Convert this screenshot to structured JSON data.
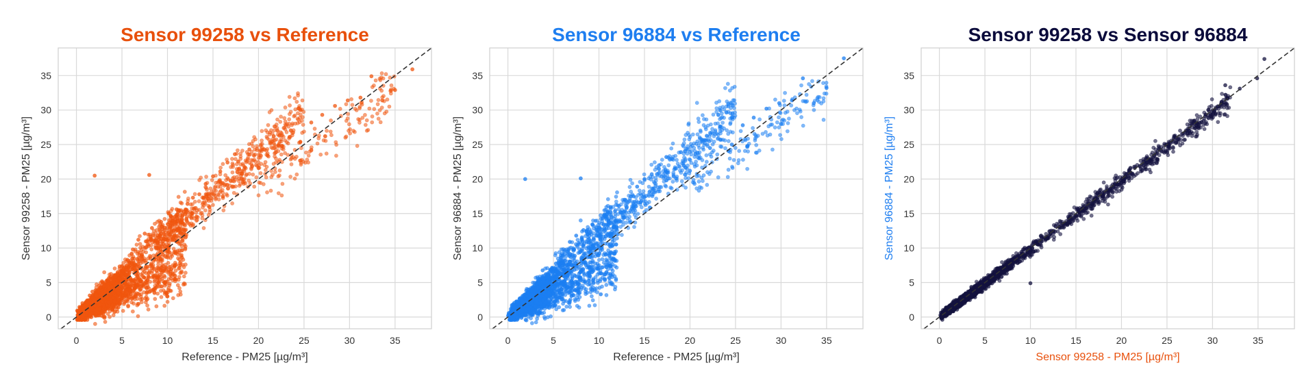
{
  "chart_data": [
    {
      "type": "scatter",
      "title": "Sensor 99258 vs Reference",
      "title_color": "#E8500C",
      "xlabel": "Reference - PM25 [µg/m³]",
      "ylabel": "Sensor 99258 - PM25 [µg/m³]",
      "xlabel_color": "#333333",
      "ylabel_color": "#333333",
      "point_color": "#F0560F",
      "xlim": [
        -2,
        39
      ],
      "ylim": [
        -1.7,
        39
      ],
      "xticks": [
        0,
        5,
        10,
        15,
        20,
        25,
        30,
        35
      ],
      "yticks": [
        0,
        5,
        10,
        15,
        20,
        25,
        30,
        35
      ],
      "grid": true,
      "reference_line": "y = x (dashed)",
      "sample_points": [
        [
          0.3,
          0.1
        ],
        [
          0.8,
          0.4
        ],
        [
          1.2,
          0.6
        ],
        [
          1.6,
          1.0
        ],
        [
          2.0,
          2.5
        ],
        [
          2.3,
          1.2
        ],
        [
          2.7,
          3.4
        ],
        [
          3.0,
          1.7
        ],
        [
          3.3,
          4.5
        ],
        [
          3.6,
          2.1
        ],
        [
          3.9,
          5.4
        ],
        [
          4.2,
          2.3
        ],
        [
          4.5,
          6.3
        ],
        [
          4.7,
          1.9
        ],
        [
          5.0,
          7.4
        ],
        [
          5.3,
          3.1
        ],
        [
          5.6,
          8.3
        ],
        [
          5.9,
          3.9
        ],
        [
          6.2,
          9.8
        ],
        [
          6.5,
          4.4
        ],
        [
          6.8,
          11.2
        ],
        [
          7.1,
          5.2
        ],
        [
          7.5,
          12.1
        ],
        [
          7.9,
          5.9
        ],
        [
          8.3,
          12.9
        ],
        [
          8.8,
          6.7
        ],
        [
          9.3,
          13.8
        ],
        [
          9.8,
          7.2
        ],
        [
          10.4,
          14.6
        ],
        [
          11.0,
          15.6
        ],
        [
          11.6,
          8.6
        ],
        [
          12.2,
          16.4
        ],
        [
          12.8,
          17.3
        ],
        [
          13.5,
          17.8
        ],
        [
          14.2,
          19.3
        ],
        [
          15.0,
          20.4
        ],
        [
          15.8,
          21.1
        ],
        [
          16.6,
          22.4
        ],
        [
          17.4,
          23.6
        ],
        [
          18.2,
          20.8
        ],
        [
          19.0,
          24.3
        ],
        [
          20.0,
          21.6
        ],
        [
          21.0,
          23.4
        ],
        [
          22.2,
          24.9
        ],
        [
          23.4,
          26.1
        ],
        [
          24.6,
          25.4
        ],
        [
          25.8,
          28.2
        ],
        [
          27.0,
          29.3
        ],
        [
          28.4,
          30.6
        ],
        [
          29.8,
          31.4
        ],
        [
          31.2,
          31.8
        ],
        [
          32.4,
          34.9
        ],
        [
          33.6,
          31.4
        ],
        [
          35.0,
          32.9
        ],
        [
          36.9,
          35.9
        ],
        [
          2.0,
          20.5
        ],
        [
          8.0,
          20.6
        ],
        [
          10.0,
          3.0
        ]
      ]
    },
    {
      "type": "scatter",
      "title": "Sensor 96884 vs Reference",
      "title_color": "#1E7EF0",
      "xlabel": "Reference - PM25 [µg/m³]",
      "ylabel": "Sensor 96884 - PM25 [µg/m³]",
      "xlabel_color": "#333333",
      "ylabel_color": "#333333",
      "point_color": "#1C7FF2",
      "xlim": [
        -2,
        39
      ],
      "ylim": [
        -1.7,
        39
      ],
      "xticks": [
        0,
        5,
        10,
        15,
        20,
        25,
        30,
        35
      ],
      "yticks": [
        0,
        5,
        10,
        15,
        20,
        25,
        30,
        35
      ],
      "grid": true,
      "reference_line": "y = x (dashed)",
      "sample_points": [
        [
          0.3,
          0.1
        ],
        [
          0.8,
          0.4
        ],
        [
          1.2,
          0.6
        ],
        [
          1.6,
          1.0
        ],
        [
          2.0,
          2.3
        ],
        [
          2.3,
          1.2
        ],
        [
          2.7,
          3.2
        ],
        [
          3.0,
          1.6
        ],
        [
          3.3,
          4.3
        ],
        [
          3.6,
          2.0
        ],
        [
          3.9,
          5.2
        ],
        [
          4.2,
          2.2
        ],
        [
          4.5,
          6.1
        ],
        [
          4.7,
          1.8
        ],
        [
          5.0,
          7.1
        ],
        [
          5.3,
          3.0
        ],
        [
          5.6,
          8.1
        ],
        [
          5.9,
          3.7
        ],
        [
          6.2,
          9.5
        ],
        [
          6.5,
          4.2
        ],
        [
          6.8,
          10.9
        ],
        [
          7.1,
          5.0
        ],
        [
          7.5,
          11.8
        ],
        [
          7.9,
          5.7
        ],
        [
          8.3,
          12.6
        ],
        [
          8.8,
          6.4
        ],
        [
          9.3,
          13.4
        ],
        [
          9.8,
          7.0
        ],
        [
          10.4,
          14.3
        ],
        [
          11.0,
          15.2
        ],
        [
          11.6,
          8.4
        ],
        [
          12.2,
          16.1
        ],
        [
          12.8,
          17.0
        ],
        [
          13.5,
          17.5
        ],
        [
          14.2,
          18.9
        ],
        [
          15.0,
          20.0
        ],
        [
          15.8,
          20.7
        ],
        [
          16.6,
          22.0
        ],
        [
          17.4,
          23.2
        ],
        [
          18.2,
          20.4
        ],
        [
          19.0,
          23.9
        ],
        [
          20.0,
          21.2
        ],
        [
          21.0,
          23.0
        ],
        [
          22.2,
          24.5
        ],
        [
          23.4,
          25.7
        ],
        [
          24.6,
          25.0
        ],
        [
          25.8,
          27.8
        ],
        [
          27.0,
          28.9
        ],
        [
          28.4,
          30.2
        ],
        [
          29.8,
          31.0
        ],
        [
          31.2,
          31.4
        ],
        [
          32.4,
          34.6
        ],
        [
          33.6,
          31.0
        ],
        [
          35.0,
          33.2
        ],
        [
          36.9,
          37.5
        ],
        [
          1.9,
          20.0
        ],
        [
          8.0,
          20.1
        ],
        [
          10.2,
          3.3
        ]
      ]
    },
    {
      "type": "scatter",
      "title": "Sensor 99258 vs Sensor 96884",
      "title_color": "#0B0B3B",
      "xlabel": "Sensor 99258 - PM25 [µg/m³]",
      "ylabel": "Sensor 96884 - PM25 [µg/m³]",
      "xlabel_color": "#E8500C",
      "ylabel_color": "#1E7EF0",
      "point_color": "#14133F",
      "xlim": [
        -2,
        39
      ],
      "ylim": [
        -1.7,
        39
      ],
      "xticks": [
        0,
        5,
        10,
        15,
        20,
        25,
        30,
        35
      ],
      "yticks": [
        0,
        5,
        10,
        15,
        20,
        25,
        30,
        35
      ],
      "grid": true,
      "reference_line": "y = x (dashed)",
      "sample_points": [
        [
          0.2,
          0.1
        ],
        [
          0.7,
          0.6
        ],
        [
          1.2,
          1.1
        ],
        [
          1.7,
          1.6
        ],
        [
          2.2,
          2.0
        ],
        [
          2.7,
          2.6
        ],
        [
          3.2,
          3.1
        ],
        [
          3.7,
          3.5
        ],
        [
          4.2,
          4.1
        ],
        [
          4.7,
          4.5
        ],
        [
          5.2,
          5.0
        ],
        [
          5.7,
          5.6
        ],
        [
          6.2,
          6.0
        ],
        [
          6.7,
          6.6
        ],
        [
          7.2,
          7.0
        ],
        [
          7.7,
          7.5
        ],
        [
          8.2,
          8.1
        ],
        [
          8.7,
          8.4
        ],
        [
          9.2,
          9.1
        ],
        [
          9.7,
          9.4
        ],
        [
          10.2,
          10.0
        ],
        [
          10.7,
          10.6
        ],
        [
          11.2,
          11.0
        ],
        [
          11.7,
          11.5
        ],
        [
          12.2,
          12.1
        ],
        [
          12.7,
          12.4
        ],
        [
          13.2,
          13.1
        ],
        [
          13.8,
          13.5
        ],
        [
          14.4,
          14.3
        ],
        [
          15.0,
          14.7
        ],
        [
          15.6,
          15.4
        ],
        [
          16.2,
          16.0
        ],
        [
          16.8,
          16.5
        ],
        [
          17.4,
          17.3
        ],
        [
          18.0,
          17.7
        ],
        [
          18.8,
          18.6
        ],
        [
          19.6,
          19.2
        ],
        [
          20.4,
          20.3
        ],
        [
          21.2,
          20.8
        ],
        [
          22.0,
          21.9
        ],
        [
          22.8,
          22.4
        ],
        [
          23.6,
          23.4
        ],
        [
          24.4,
          24.0
        ],
        [
          25.2,
          25.0
        ],
        [
          26.2,
          25.8
        ],
        [
          27.2,
          27.0
        ],
        [
          28.2,
          27.8
        ],
        [
          29.2,
          29.1
        ],
        [
          30.2,
          29.8
        ],
        [
          31.0,
          31.2
        ],
        [
          31.4,
          33.6
        ],
        [
          33.0,
          33.1
        ],
        [
          34.9,
          34.6
        ],
        [
          35.7,
          37.4
        ],
        [
          10.0,
          4.9
        ]
      ]
    }
  ]
}
